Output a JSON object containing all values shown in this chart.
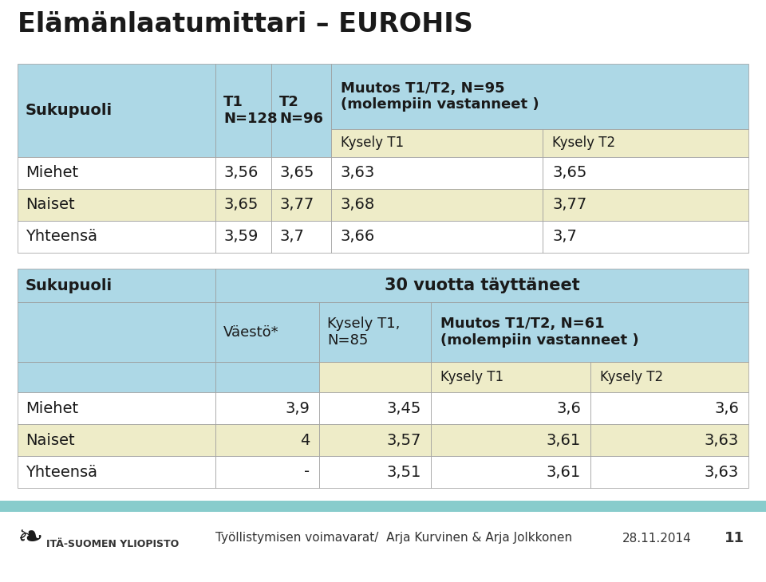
{
  "title": "Elämänlaatumittari – EUROHIS",
  "title_fontsize": 24,
  "top_table": {
    "rows": [
      [
        "Miehet",
        "3,56",
        "3,65",
        "3,63",
        "3,65"
      ],
      [
        "Naiset",
        "3,65",
        "3,77",
        "3,68",
        "3,77"
      ],
      [
        "Yhteensä",
        "3,59",
        "3,7",
        "3,66",
        "3,7"
      ]
    ]
  },
  "bottom_table": {
    "rows": [
      [
        "Miehet",
        "3,9",
        "3,45",
        "3,6",
        "3,6"
      ],
      [
        "Naiset",
        "4",
        "3,57",
        "3,61",
        "3,63"
      ],
      [
        "Yhteensä",
        "-",
        "3,51",
        "3,61",
        "3,63"
      ]
    ]
  },
  "color_light_blue": "#ADD8E6",
  "color_light_yellow": "#EEECC8",
  "color_white": "#FFFFFF",
  "color_teal_bar": "#88CCCC",
  "footer_text": "Työllistymisen voimavarat/  Arja Kurvinen & Arja Jolkkonen",
  "footer_date": "28.11.2014",
  "footer_page": "11",
  "logo_text": "ITÄ-SUOMEN YLIOPISTO"
}
